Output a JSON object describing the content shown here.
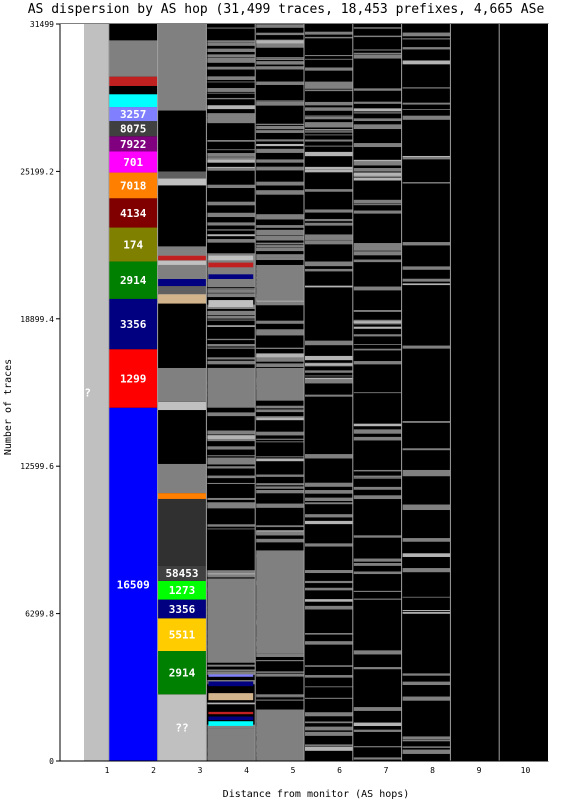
{
  "chart_data": {
    "type": "bar",
    "title": "AS dispersion by AS hop (31,499 traces, 18,453 prefixes, 4,665 ASe",
    "xlabel": "Distance from monitor (AS hops)",
    "ylabel": "Number of traces",
    "ylim": [
      0,
      31499
    ],
    "yticks": [
      "0",
      "6299.8",
      "12599.6",
      "18899.4",
      "25199.2",
      "31499"
    ],
    "categories": [
      "1",
      "2",
      "3",
      "4",
      "5",
      "6",
      "7",
      "8",
      "9",
      "10"
    ],
    "grid": false,
    "legend": "none",
    "colors": {
      "background": "#000000",
      "unknown": "#c0c0c0",
      "other": "#808080",
      "separator": "#b4b4b4",
      "grid": "#a0a0a0"
    },
    "hop1": [
      {
        "label": "??",
        "y0": 0,
        "y1": 31499,
        "color": "#c0c0c0"
      }
    ],
    "hop2": [
      {
        "label": "16509",
        "y0": 0,
        "y1": 15100,
        "color": "#0000ff"
      },
      {
        "label": "1299",
        "y0": 15100,
        "y1": 17600,
        "color": "#ff0000"
      },
      {
        "label": "3356",
        "y0": 17600,
        "y1": 19750,
        "color": "#000080"
      },
      {
        "label": "2914",
        "y0": 19750,
        "y1": 21350,
        "color": "#008000"
      },
      {
        "label": "174",
        "y0": 21350,
        "y1": 22800,
        "color": "#808000"
      },
      {
        "label": "4134",
        "y0": 22800,
        "y1": 24050,
        "color": "#800000"
      },
      {
        "label": "7018",
        "y0": 24050,
        "y1": 25150,
        "color": "#ff8000"
      },
      {
        "label": "701",
        "y0": 25150,
        "y1": 26050,
        "color": "#ff00ff"
      },
      {
        "label": "7922",
        "y0": 26050,
        "y1": 26700,
        "color": "#800080"
      },
      {
        "label": "8075",
        "y0": 26700,
        "y1": 27350,
        "color": "#404040"
      },
      {
        "label": "3257",
        "y0": 27350,
        "y1": 27950,
        "color": "#8080ff"
      },
      {
        "label": "",
        "y0": 27950,
        "y1": 28500,
        "color": "#00ffff"
      },
      {
        "label": "",
        "y0": 28500,
        "y1": 28850,
        "color": "#000000"
      },
      {
        "label": "",
        "y0": 28850,
        "y1": 29250,
        "color": "#c02020"
      },
      {
        "label": "",
        "y0": 29250,
        "y1": 30800,
        "color": "#808080"
      }
    ],
    "hop3": [
      {
        "label": "??",
        "y0": 0,
        "y1": 2850,
        "color": "#c0c0c0"
      },
      {
        "label": "2914",
        "y0": 2850,
        "y1": 4700,
        "color": "#008000"
      },
      {
        "label": "5511",
        "y0": 4700,
        "y1": 6100,
        "color": "#ffcc00"
      },
      {
        "label": "3356",
        "y0": 6100,
        "y1": 6900,
        "color": "#000080"
      },
      {
        "label": "1273",
        "y0": 6900,
        "y1": 7700,
        "color": "#00ff00"
      },
      {
        "label": "58453",
        "y0": 7700,
        "y1": 8350,
        "color": "#404040"
      },
      {
        "label": "",
        "y0": 8350,
        "y1": 11200,
        "color": "#303030"
      },
      {
        "label": "",
        "y0": 11200,
        "y1": 11450,
        "color": "#ff8000"
      },
      {
        "label": "",
        "y0": 11450,
        "y1": 12700,
        "color": "#808080"
      },
      {
        "label": "",
        "y0": 12700,
        "y1": 15000,
        "color": "#000000"
      },
      {
        "label": "",
        "y0": 15000,
        "y1": 15350,
        "color": "#c0c0c0"
      },
      {
        "label": "",
        "y0": 15350,
        "y1": 16800,
        "color": "#808080"
      },
      {
        "label": "",
        "y0": 16800,
        "y1": 19550,
        "color": "#000000"
      },
      {
        "label": "",
        "y0": 19550,
        "y1": 19950,
        "color": "#d2b48c"
      },
      {
        "label": "",
        "y0": 19950,
        "y1": 20300,
        "color": "#606060"
      },
      {
        "label": "",
        "y0": 20300,
        "y1": 20600,
        "color": "#000080"
      },
      {
        "label": "",
        "y0": 20600,
        "y1": 21200,
        "color": "#808080"
      },
      {
        "label": "",
        "y0": 21200,
        "y1": 21400,
        "color": "#c0c0c0"
      },
      {
        "label": "",
        "y0": 21400,
        "y1": 21600,
        "color": "#c02020"
      },
      {
        "label": "",
        "y0": 21600,
        "y1": 22000,
        "color": "#808080"
      },
      {
        "label": "",
        "y0": 22000,
        "y1": 24600,
        "color": "#000000"
      },
      {
        "label": "",
        "y0": 24600,
        "y1": 24900,
        "color": "#c0c0c0"
      },
      {
        "label": "",
        "y0": 24900,
        "y1": 25200,
        "color": "#606060"
      },
      {
        "label": "",
        "y0": 25200,
        "y1": 27800,
        "color": "#000000"
      },
      {
        "label": "",
        "y0": 27800,
        "y1": 31499,
        "color": "#808080"
      }
    ]
  }
}
